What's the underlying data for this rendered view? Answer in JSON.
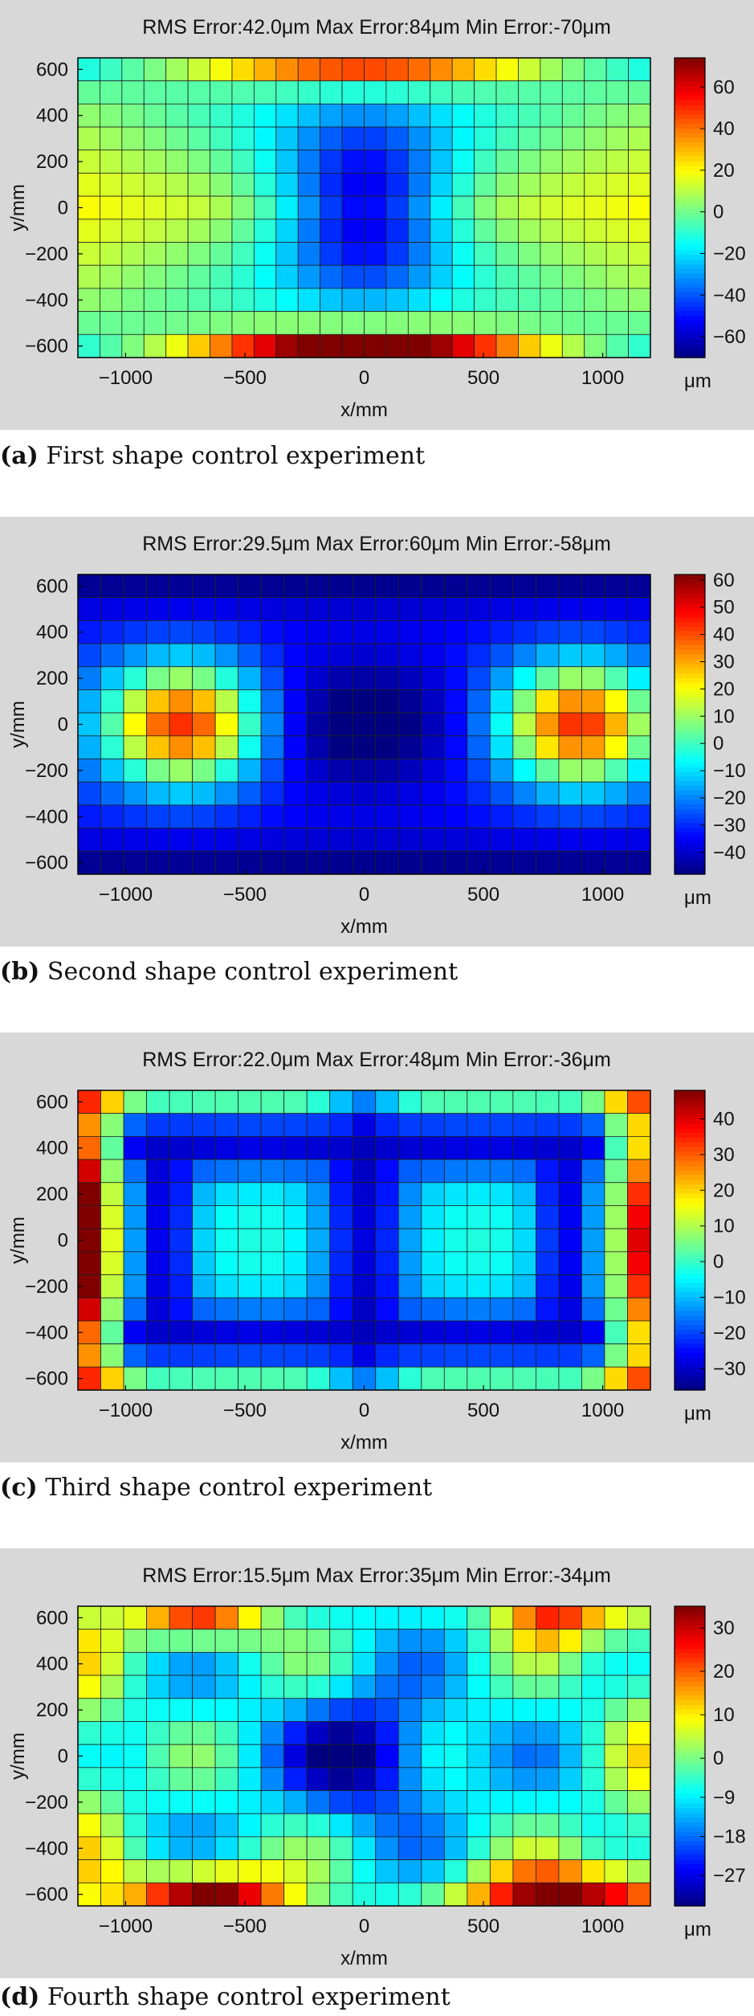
{
  "chart_data": [
    {
      "type": "heatmap",
      "panel_label": "(a)",
      "caption": "First shape control experiment",
      "stats": {
        "rms": "RMS Error:42.0",
        "max": "Max Error:84",
        "min": "Min Error:-70",
        "unit": "μm"
      },
      "xlabel": "x/mm",
      "ylabel": "y/mm",
      "xlim": [
        -1200,
        1200
      ],
      "ylim": [
        -650,
        650
      ],
      "xticks": [
        -1000,
        -500,
        0,
        500,
        1000
      ],
      "yticks": [
        600,
        400,
        200,
        0,
        -200,
        -400,
        -600
      ],
      "colorbar": {
        "min": -70,
        "max": 74,
        "ticks": [
          60,
          40,
          20,
          0,
          -20,
          -40,
          -60
        ],
        "label": "μm"
      },
      "grid": {
        "cols": 26,
        "rows": 13,
        "fn": 1
      }
    },
    {
      "type": "heatmap",
      "panel_label": "(b)",
      "caption": "Second shape control experiment",
      "stats": {
        "rms": "RMS Error:29.5",
        "max": "Max Error:60",
        "min": "Min Error:-58",
        "unit": "μm"
      },
      "xlabel": "x/mm",
      "ylabel": "y/mm",
      "xlim": [
        -1200,
        1200
      ],
      "ylim": [
        -650,
        650
      ],
      "xticks": [
        -1000,
        -500,
        0,
        500,
        1000
      ],
      "yticks": [
        600,
        400,
        200,
        0,
        -200,
        -400,
        -600
      ],
      "colorbar": {
        "min": -48,
        "max": 62,
        "ticks": [
          60,
          50,
          40,
          30,
          20,
          10,
          0,
          -10,
          -20,
          -30,
          -40
        ],
        "label": "μm"
      },
      "grid": {
        "cols": 25,
        "rows": 13,
        "fn": 2
      }
    },
    {
      "type": "heatmap",
      "panel_label": "(c)",
      "caption": "Third shape control experiment",
      "stats": {
        "rms": "RMS Error:22.0",
        "max": "Max Error:48",
        "min": "Min Error:-36",
        "unit": "μm"
      },
      "xlabel": "x/mm",
      "ylabel": "y/mm",
      "xlim": [
        -1200,
        1200
      ],
      "ylim": [
        -650,
        650
      ],
      "xticks": [
        -1000,
        -500,
        0,
        500,
        1000
      ],
      "yticks": [
        600,
        400,
        200,
        0,
        -200,
        -400,
        -600
      ],
      "colorbar": {
        "min": -36,
        "max": 48,
        "ticks": [
          40,
          30,
          20,
          10,
          0,
          -10,
          -20,
          -30
        ],
        "label": "μm"
      },
      "grid": {
        "cols": 25,
        "rows": 13,
        "fn": 3
      }
    },
    {
      "type": "heatmap",
      "panel_label": "(d)",
      "caption": "Fourth shape control experiment",
      "stats": {
        "rms": "RMS Error:15.5",
        "max": "Max Error:35",
        "min": "Min Error:-34",
        "unit": "μm"
      },
      "xlabel": "x/mm",
      "ylabel": "y/mm",
      "xlim": [
        -1200,
        1200
      ],
      "ylim": [
        -650,
        650
      ],
      "xticks": [
        -1000,
        -500,
        0,
        500,
        1000
      ],
      "yticks": [
        600,
        400,
        200,
        0,
        -200,
        -400,
        -600
      ],
      "colorbar": {
        "min": -34,
        "max": 35,
        "ticks": [
          30,
          20,
          10,
          0,
          -9,
          -18,
          -27
        ],
        "label": "μm"
      },
      "grid": {
        "cols": 25,
        "rows": 13,
        "fn": 4
      }
    }
  ],
  "colormap": "jet"
}
